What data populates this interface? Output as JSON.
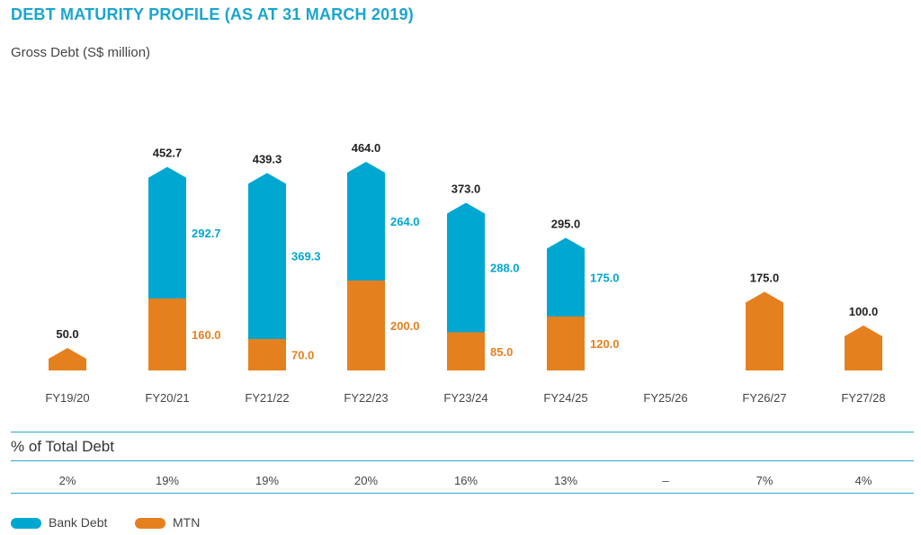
{
  "title": "DEBT MATURITY PROFILE (AS AT 31 MARCH 2019)",
  "subtitle": "Gross Debt (S$ million)",
  "colors": {
    "bank": "#00a7d0",
    "mtn": "#e5801f",
    "title": "#1aa5cf",
    "rule": "#29a8d0"
  },
  "chart_data": {
    "type": "bar",
    "stacked": true,
    "categories": [
      "FY19/20",
      "FY20/21",
      "FY21/22",
      "FY22/23",
      "FY23/24",
      "FY24/25",
      "FY25/26",
      "FY26/27",
      "FY27/28"
    ],
    "series": [
      {
        "name": "MTN",
        "values": [
          50.0,
          160.0,
          70.0,
          200.0,
          85.0,
          120.0,
          0,
          175.0,
          100.0
        ],
        "labels": [
          "",
          "160.0",
          "70.0",
          "200.0",
          "85.0",
          "120.0",
          "",
          "",
          ""
        ]
      },
      {
        "name": "Bank Debt",
        "values": [
          0,
          292.7,
          369.3,
          264.0,
          288.0,
          175.0,
          0,
          0,
          0
        ],
        "labels": [
          "",
          "292.7",
          "369.3",
          "264.0",
          "288.0",
          "175.0",
          "",
          "",
          ""
        ]
      }
    ],
    "totals": [
      "50.0",
      "452.7",
      "439.3",
      "464.0",
      "373.0",
      "295.0",
      "",
      "175.0",
      "100.0"
    ],
    "ylabel": "Gross Debt (S$ million)"
  },
  "percent_section": {
    "title": "% of Total Debt",
    "values": [
      "2%",
      "19%",
      "19%",
      "20%",
      "16%",
      "13%",
      "–",
      "7%",
      "4%"
    ]
  },
  "legend": [
    {
      "name": "Bank Debt",
      "color": "#00a7d0"
    },
    {
      "name": "MTN",
      "color": "#e5801f"
    }
  ]
}
